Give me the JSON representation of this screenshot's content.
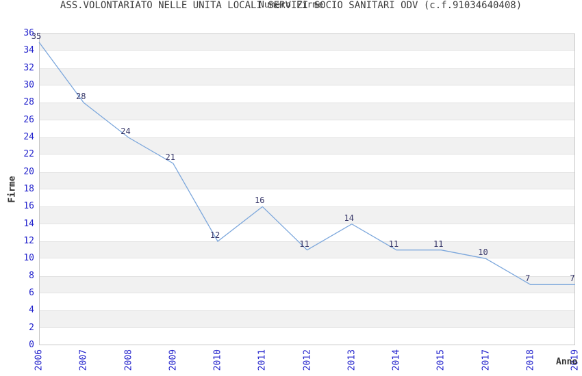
{
  "chart_data": {
    "type": "line",
    "title": "ASS.VOLONTARIATO NELLE UNITA LOCALI SERVIZI SOCIO SANITARI ODV (c.f.91034640408)",
    "subtitle": "Numero Firme",
    "xlabel": "Anno",
    "ylabel": "Firme",
    "categories": [
      "2006",
      "2007",
      "2008",
      "2009",
      "2010",
      "2011",
      "2012",
      "2013",
      "2014",
      "2015",
      "2017",
      "2018",
      "2019"
    ],
    "values": [
      35,
      28,
      24,
      21,
      12,
      16,
      11,
      14,
      11,
      11,
      10,
      7,
      7
    ],
    "ylim": [
      0,
      36
    ],
    "ytick_step": 2,
    "xtick_rotation": 90,
    "data_labels_shown": true,
    "legend": "none",
    "grid": "alternating-horizontal-bands",
    "colors": {
      "line": "#7CA7DC",
      "band": "#F1F1F1",
      "tick_label": "#2222CC",
      "data_label": "#333366",
      "title": "#3C3C3C",
      "axis_label": "#333333",
      "plot_border": "#C6C6C6",
      "background": "#FFFFFF"
    }
  }
}
